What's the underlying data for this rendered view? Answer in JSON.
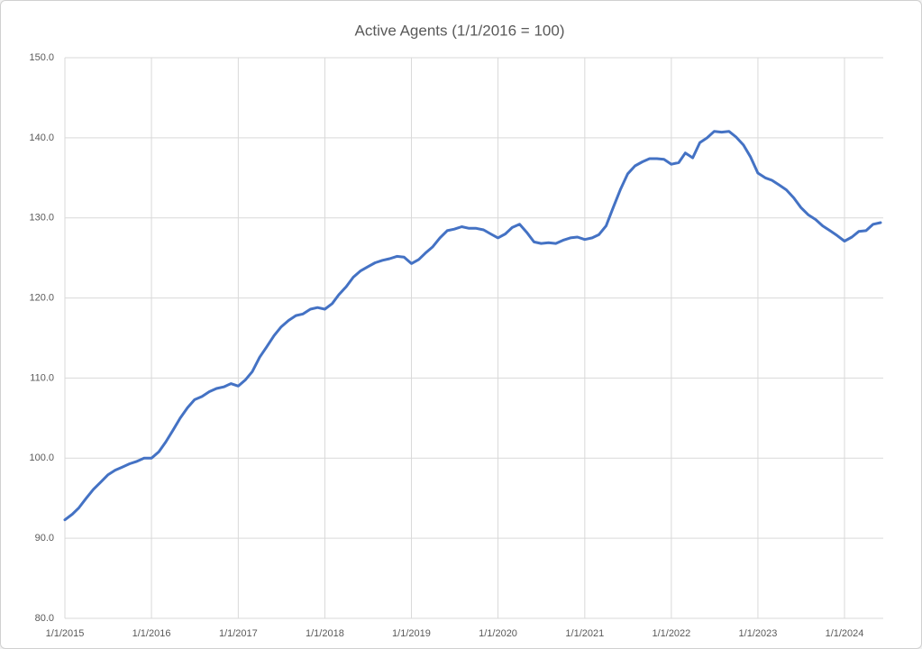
{
  "chart_data": {
    "type": "line",
    "title": "Active Agents (1/1/2016 = 100)",
    "x": [
      "2015-01-01",
      "2015-02-01",
      "2015-03-01",
      "2015-04-01",
      "2015-05-01",
      "2015-06-01",
      "2015-07-01",
      "2015-08-01",
      "2015-09-01",
      "2015-10-01",
      "2015-11-01",
      "2015-12-01",
      "2016-01-01",
      "2016-02-01",
      "2016-03-01",
      "2016-04-01",
      "2016-05-01",
      "2016-06-01",
      "2016-07-01",
      "2016-08-01",
      "2016-09-01",
      "2016-10-01",
      "2016-11-01",
      "2016-12-01",
      "2017-01-01",
      "2017-02-01",
      "2017-03-01",
      "2017-04-01",
      "2017-05-01",
      "2017-06-01",
      "2017-07-01",
      "2017-08-01",
      "2017-09-01",
      "2017-10-01",
      "2017-11-01",
      "2017-12-01",
      "2018-01-01",
      "2018-02-01",
      "2018-03-01",
      "2018-04-01",
      "2018-05-01",
      "2018-06-01",
      "2018-07-01",
      "2018-08-01",
      "2018-09-01",
      "2018-10-01",
      "2018-11-01",
      "2018-12-01",
      "2019-01-01",
      "2019-02-01",
      "2019-03-01",
      "2019-04-01",
      "2019-05-01",
      "2019-06-01",
      "2019-07-01",
      "2019-08-01",
      "2019-09-01",
      "2019-10-01",
      "2019-11-01",
      "2019-12-01",
      "2020-01-01",
      "2020-02-01",
      "2020-03-01",
      "2020-04-01",
      "2020-05-01",
      "2020-06-01",
      "2020-07-01",
      "2020-08-01",
      "2020-09-01",
      "2020-10-01",
      "2020-11-01",
      "2020-12-01",
      "2021-01-01",
      "2021-02-01",
      "2021-03-01",
      "2021-04-01",
      "2021-05-01",
      "2021-06-01",
      "2021-07-01",
      "2021-08-01",
      "2021-09-01",
      "2021-10-01",
      "2021-11-01",
      "2021-12-01",
      "2022-01-01",
      "2022-02-01",
      "2022-03-01",
      "2022-04-01",
      "2022-05-01",
      "2022-06-01",
      "2022-07-01",
      "2022-08-01",
      "2022-09-01",
      "2022-10-01",
      "2022-11-01",
      "2022-12-01",
      "2023-01-01",
      "2023-02-01",
      "2023-03-01",
      "2023-04-01",
      "2023-05-01",
      "2023-06-01",
      "2023-07-01",
      "2023-08-01",
      "2023-09-01",
      "2023-10-01",
      "2023-11-01",
      "2023-12-01",
      "2024-01-01",
      "2024-02-01",
      "2024-03-01",
      "2024-04-01",
      "2024-05-01",
      "2024-06-01"
    ],
    "series": [
      {
        "name": "Active Agents",
        "color": "#4472c4",
        "values": [
          92.3,
          93.0,
          93.8,
          95.0,
          96.1,
          97.0,
          97.9,
          98.5,
          98.9,
          99.3,
          99.6,
          100.0,
          100.0,
          100.8,
          102.0,
          103.5,
          105.0,
          106.3,
          107.3,
          107.7,
          108.3,
          108.7,
          108.9,
          109.3,
          109.0,
          109.8,
          110.8,
          112.6,
          113.9,
          115.3,
          116.4,
          117.2,
          117.8,
          118.0,
          118.6,
          118.8,
          118.6,
          119.3,
          120.4,
          121.4,
          122.6,
          123.4,
          123.9,
          124.4,
          124.7,
          124.9,
          125.2,
          125.1,
          124.3,
          124.8,
          125.6,
          126.4,
          127.5,
          128.4,
          128.6,
          128.9,
          128.7,
          128.7,
          128.5,
          128.0,
          127.5,
          128.0,
          128.8,
          129.2,
          128.2,
          127.0,
          126.8,
          126.9,
          126.8,
          127.2,
          127.5,
          127.6,
          127.3,
          127.5,
          127.9,
          129.0,
          131.3,
          133.6,
          135.5,
          136.5,
          137.0,
          137.4,
          137.4,
          137.3,
          136.7,
          136.9,
          138.1,
          137.5,
          139.4,
          140.0,
          140.8,
          140.7,
          140.8,
          140.1,
          139.1,
          137.6,
          135.6,
          135.0,
          134.7,
          134.1,
          133.5,
          132.5,
          131.3,
          130.4,
          129.8,
          129.0,
          128.4,
          127.8,
          127.1,
          127.6,
          128.3,
          128.4,
          129.2,
          129.4
        ]
      }
    ],
    "xlim": [
      "2015-01-01",
      "2024-06-01"
    ],
    "xticks": [
      {
        "value": "2015-01-01",
        "label": "1/1/2015"
      },
      {
        "value": "2016-01-01",
        "label": "1/1/2016"
      },
      {
        "value": "2017-01-01",
        "label": "1/1/2017"
      },
      {
        "value": "2018-01-01",
        "label": "1/1/2018"
      },
      {
        "value": "2019-01-01",
        "label": "1/1/2019"
      },
      {
        "value": "2020-01-01",
        "label": "1/1/2020"
      },
      {
        "value": "2021-01-01",
        "label": "1/1/2021"
      },
      {
        "value": "2022-01-01",
        "label": "1/1/2022"
      },
      {
        "value": "2023-01-01",
        "label": "1/1/2023"
      },
      {
        "value": "2024-01-01",
        "label": "1/1/2024"
      }
    ],
    "ylim": [
      80,
      150
    ],
    "yticks": [
      {
        "value": 80,
        "label": "80.0"
      },
      {
        "value": 90,
        "label": "90.0"
      },
      {
        "value": 100,
        "label": "100.0"
      },
      {
        "value": 110,
        "label": "110.0"
      },
      {
        "value": 120,
        "label": "120.0"
      },
      {
        "value": 130,
        "label": "130.0"
      },
      {
        "value": 140,
        "label": "140.0"
      },
      {
        "value": 150,
        "label": "150.0"
      }
    ],
    "grid": true
  }
}
